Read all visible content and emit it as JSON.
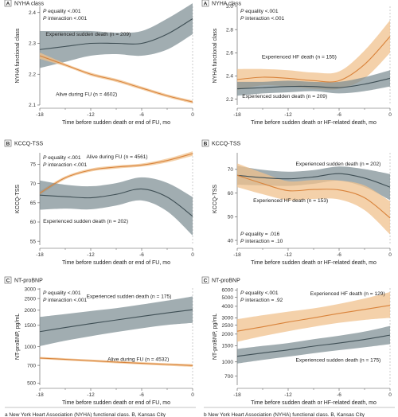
{
  "colors": {
    "gray_line": "#3f4f55",
    "gray_band": "#7d8e93",
    "orange_line": "#d9833b",
    "orange_band": "#f0c18d",
    "refline": "#aaaaaa"
  },
  "footnotes": {
    "left": "a New York Heart Association (NYHA) functional class. B, Kansas City",
    "right": "b New York Heart Association (NYHA) functional class. B, Kansas City"
  },
  "chart_data": [
    {
      "id": "A_left",
      "type": "line",
      "badge": "A",
      "title": "NYHA class",
      "xlabel": "Time before sudden death or end of FU, mo",
      "ylabel": "NYHA functional class",
      "xlim": [
        -18,
        0
      ],
      "ylim": [
        2.1,
        2.42
      ],
      "xticks": [
        -18,
        -12,
        -6,
        0
      ],
      "yticks": [
        2.1,
        2.2,
        2.3,
        2.4
      ],
      "ytick_labels": [
        "2.1",
        "2.2",
        "2.3",
        "2.4"
      ],
      "stats": [
        "P equality <.001",
        "P interaction <.001"
      ],
      "series": [
        {
          "name": "Experienced sudden death (n = 209)",
          "color": "gray",
          "x": [
            -18,
            -15,
            -12,
            -9,
            -6,
            -3,
            0
          ],
          "y": [
            2.28,
            2.29,
            2.3,
            2.3,
            2.3,
            2.33,
            2.38
          ],
          "lower": [
            2.22,
            2.24,
            2.26,
            2.265,
            2.26,
            2.28,
            2.33
          ],
          "upper": [
            2.34,
            2.34,
            2.34,
            2.335,
            2.34,
            2.38,
            2.43
          ],
          "label_at": [
            -12.3,
            2.325
          ]
        },
        {
          "name": "Alive during FU (n = 4602)",
          "color": "orange",
          "x": [
            -18,
            -15,
            -12,
            -9,
            -6,
            -3,
            0
          ],
          "y": [
            2.26,
            2.23,
            2.2,
            2.18,
            2.155,
            2.13,
            2.11
          ],
          "lower": [
            2.25,
            2.225,
            2.195,
            2.175,
            2.15,
            2.125,
            2.105
          ],
          "upper": [
            2.27,
            2.235,
            2.205,
            2.185,
            2.16,
            2.135,
            2.115
          ],
          "label_at": [
            -12.5,
            2.13
          ]
        }
      ]
    },
    {
      "id": "A_right",
      "type": "line",
      "badge": "A",
      "title": "NYHA class",
      "xlabel": "Time before sudden death or HF-related death, mo",
      "ylabel": "NYHA functional class",
      "xlim": [
        -18,
        0
      ],
      "ylim": [
        2.15,
        3.0
      ],
      "xticks": [
        -18,
        -12,
        -6,
        0
      ],
      "yticks": [
        2.2,
        2.4,
        2.6,
        2.8,
        3.0
      ],
      "ytick_labels": [
        "2.2",
        "2.4",
        "2.6",
        "2.8",
        "3.0"
      ],
      "stats": [
        "P equality <.001",
        "P interaction <.001"
      ],
      "series": [
        {
          "name": "Experienced HF death (n = 155)",
          "color": "orange",
          "x": [
            -18,
            -15,
            -12,
            -9,
            -6,
            -3,
            0
          ],
          "y": [
            2.37,
            2.39,
            2.38,
            2.36,
            2.36,
            2.5,
            2.74
          ],
          "lower": [
            2.28,
            2.32,
            2.31,
            2.29,
            2.29,
            2.38,
            2.6
          ],
          "upper": [
            2.46,
            2.46,
            2.45,
            2.43,
            2.44,
            2.62,
            2.88
          ],
          "label_at": [
            -10.7,
            2.55
          ]
        },
        {
          "name": "Experienced sudden death (n = 209)",
          "color": "gray",
          "x": [
            -18,
            -15,
            -12,
            -9,
            -6,
            -3,
            0
          ],
          "y": [
            2.29,
            2.3,
            2.31,
            2.31,
            2.3,
            2.33,
            2.38
          ],
          "lower": [
            2.23,
            2.25,
            2.26,
            2.27,
            2.25,
            2.27,
            2.31
          ],
          "upper": [
            2.35,
            2.35,
            2.36,
            2.35,
            2.35,
            2.39,
            2.45
          ],
          "label_at": [
            -12.4,
            2.21
          ]
        }
      ]
    },
    {
      "id": "B_left",
      "type": "line",
      "badge": "B",
      "title": "KCCQ-TSS",
      "xlabel": "Time before sudden death or end of FU, mo",
      "ylabel": "KCCQ-TSS",
      "xlim": [
        -18,
        0
      ],
      "ylim": [
        54,
        78
      ],
      "xticks": [
        -18,
        -12,
        -6,
        0
      ],
      "yticks": [
        55,
        60,
        65,
        70,
        75
      ],
      "ytick_labels": [
        "55",
        "60",
        "65",
        "70",
        "75"
      ],
      "stats": [
        "P equality <.001",
        "P interaction <.001"
      ],
      "series": [
        {
          "name": "Alive during FU (n = 4561)",
          "color": "orange",
          "x": [
            -18,
            -15,
            -12,
            -9,
            -6,
            -3,
            0
          ],
          "y": [
            67.5,
            71.5,
            73.5,
            74.3,
            74.8,
            76.0,
            77.8
          ],
          "lower": [
            67.0,
            71.1,
            73.1,
            73.9,
            74.4,
            75.5,
            77.2
          ],
          "upper": [
            68.0,
            71.9,
            73.9,
            74.7,
            75.2,
            76.5,
            78.4
          ],
          "label_at": [
            -8.9,
            76.6
          ]
        },
        {
          "name": "Experienced sudden death (n = 202)",
          "color": "gray",
          "x": [
            -18,
            -15,
            -12,
            -9,
            -6,
            -3,
            0
          ],
          "y": [
            67.0,
            66.6,
            66.3,
            67.2,
            68.6,
            66.5,
            61.5
          ],
          "lower": [
            63.2,
            63.5,
            63.3,
            64.3,
            65.6,
            62.8,
            56.5
          ],
          "upper": [
            70.8,
            69.7,
            69.3,
            70.1,
            71.6,
            70.2,
            66.5
          ],
          "label_at": [
            -12.6,
            59.8
          ]
        }
      ]
    },
    {
      "id": "B_right",
      "type": "line",
      "badge": "B",
      "title": "KCCQ-TSS",
      "xlabel": "Time before sudden death or HF-related death, mo",
      "ylabel": "KCCQ-TSS",
      "xlim": [
        -18,
        0
      ],
      "ylim": [
        38,
        77
      ],
      "xticks": [
        -18,
        -12,
        -6,
        0
      ],
      "yticks": [
        40,
        50,
        60,
        70
      ],
      "ytick_labels": [
        "40",
        "50",
        "60",
        "70"
      ],
      "stats": [
        "P equality = .016",
        "P interaction = .10"
      ],
      "series": [
        {
          "name": "Experienced sudden death (n = 202)",
          "color": "gray",
          "x": [
            -18,
            -15,
            -12,
            -9,
            -6,
            -3,
            0
          ],
          "y": [
            67.5,
            66.5,
            66.0,
            66.8,
            68.2,
            66.3,
            62.5
          ],
          "lower": [
            63.5,
            63.2,
            63.0,
            63.9,
            65.2,
            62.5,
            57.0
          ],
          "upper": [
            71.5,
            69.8,
            69.0,
            69.7,
            71.2,
            70.1,
            68.0
          ],
          "label_at": [
            -6.1,
            71.6
          ]
        },
        {
          "name": "Experienced HF death (n = 153)",
          "color": "orange",
          "x": [
            -18,
            -15,
            -12,
            -9,
            -6,
            -3,
            0
          ],
          "y": [
            67.5,
            64.0,
            61.0,
            61.5,
            61.3,
            58.0,
            49.5
          ],
          "lower": [
            62.5,
            59.5,
            57.0,
            57.5,
            57.3,
            52.8,
            42.5
          ],
          "upper": [
            72.5,
            68.5,
            65.0,
            65.5,
            65.3,
            63.2,
            56.5
          ],
          "label_at": [
            -11.7,
            56.2
          ]
        }
      ]
    },
    {
      "id": "C_left",
      "type": "line",
      "badge": "C",
      "title": "NT-proBNP",
      "xlabel": "Time before sudden death or end of FU, mo",
      "ylabel": "NT-proBNP, pg/mL",
      "xlim": [
        -18,
        0
      ],
      "ylim": [
        480,
        3050
      ],
      "yscale": "log",
      "xticks": [
        -18,
        -12,
        -6,
        0
      ],
      "yticks": [
        500,
        700,
        1000,
        1500,
        2000,
        2500,
        3000
      ],
      "ytick_labels": [
        "500",
        "700",
        "1000",
        "1500",
        "2000",
        "2500",
        "3000"
      ],
      "stats": [
        "P equality <.001",
        "P interaction <.001"
      ],
      "series": [
        {
          "name": "Experienced sudden death (n = 175)",
          "color": "gray",
          "x": [
            -18,
            -15,
            -12,
            -9,
            -6,
            -3,
            0
          ],
          "y": [
            1330,
            1440,
            1550,
            1660,
            1780,
            1900,
            2020
          ],
          "lower": [
            1010,
            1120,
            1220,
            1320,
            1420,
            1510,
            1570
          ],
          "upper": [
            1760,
            1860,
            1970,
            2080,
            2230,
            2400,
            2600
          ],
          "label_at": [
            -7.5,
            2520
          ]
        },
        {
          "name": "Alive during FU (n = 4532)",
          "color": "orange",
          "x": [
            -18,
            -15,
            -12,
            -9,
            -6,
            -3,
            0
          ],
          "y": [
            805,
            785,
            765,
            745,
            728,
            712,
            698
          ],
          "lower": [
            788,
            768,
            748,
            728,
            711,
            695,
            680
          ],
          "upper": [
            822,
            802,
            782,
            762,
            745,
            729,
            716
          ],
          "label_at": [
            -6.4,
            760
          ]
        }
      ]
    },
    {
      "id": "C_right",
      "type": "line",
      "badge": "C",
      "title": "NT-proBNP",
      "xlabel": "Time before sudden death or HF-related death, mo",
      "ylabel": "NT-proBNP, pg/mL",
      "xlim": [
        -18,
        0
      ],
      "ylim": [
        560,
        6300
      ],
      "yscale": "log",
      "xticks": [
        -18,
        -12,
        -6,
        0
      ],
      "yticks": [
        700,
        1000,
        1500,
        2000,
        2500,
        3000,
        4000,
        5000,
        6000
      ],
      "ytick_labels": [
        "700",
        "1000",
        "1500",
        "2000",
        "2500",
        "3000",
        "4000",
        "5000",
        "6000"
      ],
      "stats": [
        "P equality <.001",
        "P interaction = .92"
      ],
      "series": [
        {
          "name": "Experienced HF death (n = 129)",
          "color": "orange",
          "x": [
            -18,
            -15,
            -12,
            -9,
            -6,
            -3,
            0
          ],
          "y": [
            2150,
            2400,
            2700,
            3000,
            3350,
            3700,
            4100
          ],
          "lower": [
            1650,
            1900,
            2150,
            2400,
            2650,
            2850,
            3000
          ],
          "upper": [
            2900,
            3200,
            3500,
            3800,
            4250,
            4850,
            5700
          ],
          "label_at": [
            -5.0,
            5250
          ]
        },
        {
          "name": "Experienced sudden death (n = 175)",
          "color": "gray",
          "x": [
            -18,
            -15,
            -12,
            -9,
            -6,
            -3,
            0
          ],
          "y": [
            1150,
            1250,
            1350,
            1480,
            1600,
            1750,
            1950
          ],
          "lower": [
            960,
            1050,
            1140,
            1240,
            1340,
            1440,
            1560
          ],
          "upper": [
            1380,
            1490,
            1600,
            1760,
            1920,
            2130,
            2450
          ],
          "label_at": [
            -6.1,
            1010
          ]
        }
      ]
    }
  ]
}
